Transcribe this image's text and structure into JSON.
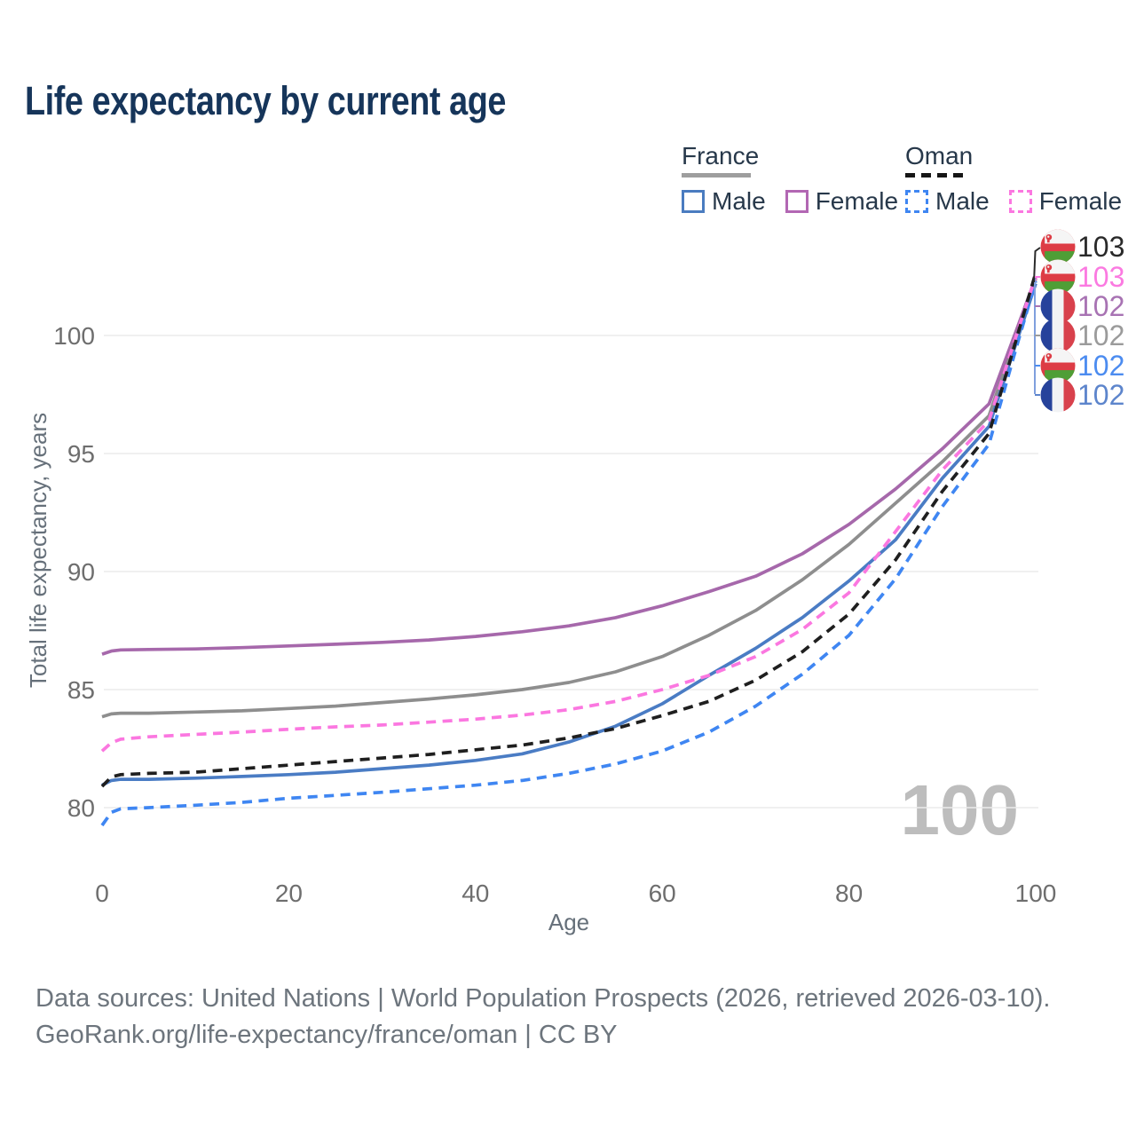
{
  "title": "Life expectancy by current age",
  "legend": {
    "france": {
      "label": "France",
      "male": "Male",
      "female": "Female"
    },
    "oman": {
      "label": "Oman",
      "male": "Male",
      "female": "Female"
    }
  },
  "watermark": "100",
  "footer": {
    "line1": "Data sources: United Nations | World Population Prospects (2026, retrieved 2026-03-10).",
    "line2": "GeoRank.org/life-expectancy/france/oman | CC BY"
  },
  "colors": {
    "title_text": "#16355a",
    "legend_text": "#27384a",
    "france_male": "#4a7cc4",
    "france_female": "#a668ab",
    "france_total": "#8e8e8e",
    "oman_male": "#3f86f2",
    "oman_female": "#fb77e0",
    "oman_total": "#1f1f1f",
    "gridline": "#ececec",
    "tick_text": "#6e6e6e",
    "watermark": "#bdbdbd",
    "footer_text": "#6d757d"
  },
  "chart_data": {
    "type": "line",
    "title": "Life expectancy by current age",
    "xlabel": "Age",
    "ylabel": "Total life expectancy, years",
    "xlim": [
      0,
      100
    ],
    "ylim": [
      78.5,
      103.5
    ],
    "xticks": [
      0,
      20,
      40,
      60,
      80,
      100
    ],
    "yticks": [
      80,
      85,
      90,
      95,
      100
    ],
    "grid": "horizontal",
    "legend_position": "top-right",
    "x": [
      0,
      1,
      2,
      5,
      10,
      15,
      20,
      25,
      30,
      35,
      40,
      45,
      50,
      55,
      60,
      65,
      70,
      75,
      80,
      85,
      90,
      95,
      98,
      100
    ],
    "series": [
      {
        "name": "France Total",
        "country": "France",
        "sex": "total",
        "color": "#8e8e8e",
        "dash": "solid",
        "values": [
          83.85,
          83.97,
          84.0,
          84.0,
          84.05,
          84.1,
          84.2,
          84.3,
          84.45,
          84.6,
          84.78,
          85.0,
          85.3,
          85.75,
          86.4,
          87.3,
          88.35,
          89.65,
          91.15,
          92.9,
          94.65,
          96.6,
          100.1,
          102.4
        ]
      },
      {
        "name": "France Female",
        "country": "France",
        "sex": "female",
        "color": "#a668ab",
        "dash": "solid",
        "values": [
          86.5,
          86.63,
          86.68,
          86.7,
          86.72,
          86.78,
          86.85,
          86.92,
          87.0,
          87.1,
          87.25,
          87.45,
          87.7,
          88.05,
          88.55,
          89.15,
          89.8,
          90.75,
          92.0,
          93.5,
          95.2,
          97.1,
          100.3,
          102.45
        ]
      },
      {
        "name": "France Male",
        "country": "France",
        "sex": "male",
        "color": "#4a7cc4",
        "dash": "solid",
        "values": [
          80.95,
          81.15,
          81.2,
          81.2,
          81.25,
          81.32,
          81.4,
          81.5,
          81.65,
          81.8,
          82.0,
          82.28,
          82.78,
          83.45,
          84.4,
          85.6,
          86.75,
          88.05,
          89.6,
          91.35,
          93.95,
          96.15,
          99.8,
          102.2
        ]
      },
      {
        "name": "Oman Male",
        "country": "Oman",
        "sex": "male",
        "color": "#3f86f2",
        "dash": "dashed",
        "values": [
          79.25,
          79.8,
          79.95,
          80.0,
          80.1,
          80.22,
          80.4,
          80.52,
          80.65,
          80.8,
          80.95,
          81.15,
          81.45,
          81.85,
          82.4,
          83.2,
          84.3,
          85.65,
          87.3,
          89.7,
          92.75,
          95.4,
          99.6,
          102.3
        ]
      },
      {
        "name": "Oman Female",
        "country": "Oman",
        "sex": "female",
        "color": "#fb77e0",
        "dash": "dashed",
        "values": [
          82.4,
          82.75,
          82.9,
          83.0,
          83.1,
          83.2,
          83.32,
          83.42,
          83.5,
          83.62,
          83.75,
          83.92,
          84.15,
          84.5,
          85.0,
          85.6,
          86.4,
          87.55,
          89.1,
          91.7,
          94.3,
          96.4,
          100.1,
          102.5
        ]
      },
      {
        "name": "Oman Total",
        "country": "Oman",
        "sex": "total",
        "color": "#1f1f1f",
        "dash": "dashed",
        "values": [
          80.9,
          81.3,
          81.4,
          81.45,
          81.5,
          81.65,
          81.8,
          81.95,
          82.1,
          82.25,
          82.45,
          82.65,
          82.95,
          83.35,
          83.9,
          84.5,
          85.4,
          86.6,
          88.2,
          90.5,
          93.4,
          95.85,
          99.95,
          102.65
        ]
      }
    ],
    "end_labels": [
      {
        "text": "103",
        "flag": "oman",
        "series": "Oman Total",
        "color": "#2a2a2a"
      },
      {
        "text": "103",
        "flag": "oman",
        "series": "Oman Female",
        "color": "#fb7ae1"
      },
      {
        "text": "102",
        "flag": "france",
        "series": "France Female",
        "color": "#a873b3"
      },
      {
        "text": "102",
        "flag": "france",
        "series": "France Total",
        "color": "#9b9b9b"
      },
      {
        "text": "102",
        "flag": "oman",
        "series": "Oman Male",
        "color": "#4c8cf0"
      },
      {
        "text": "102",
        "flag": "france",
        "series": "France Male",
        "color": "#5d85cc"
      }
    ]
  }
}
